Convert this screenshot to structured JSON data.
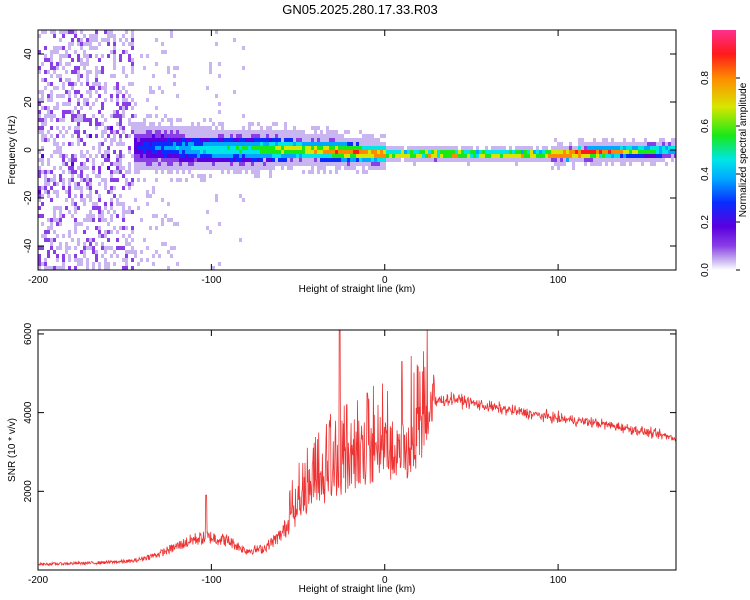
{
  "figure": {
    "title": "GN05.2025.280.17.33.R03"
  },
  "colors": {
    "snr_line": "#ee3333",
    "colormap": [
      "#ffffff",
      "#c9b5f0",
      "#8a3fe6",
      "#5a00e0",
      "#0a2cff",
      "#00a8ff",
      "#00e6e6",
      "#18e818",
      "#d8e600",
      "#ff8a00",
      "#ff1a1a",
      "#ff2f8f"
    ]
  },
  "chart_data": [
    {
      "type": "heatmap",
      "name": "spectrogram",
      "xlabel": "Height of straight line (km)",
      "ylabel": "Frequency (Hz)",
      "xlim": [
        -200,
        168
      ],
      "ylim": [
        -50,
        50
      ],
      "xticks": [
        -200,
        -100,
        0,
        100
      ],
      "yticks": [
        -40,
        -20,
        0,
        20,
        40
      ],
      "colorbar": {
        "label": "Normalized spectral amplitude",
        "range": [
          0,
          1
        ],
        "ticks": [
          "0.0",
          "0.2",
          "0.4",
          "0.6",
          "0.8"
        ]
      },
      "description_of_values": "amplitude mostly near 0 Hz; diffuse noise for heights < -145 km; narrow band from -145 km to 168 km with peak ~1.0 near 110 km",
      "band_center_hz": [
        {
          "x": -145,
          "f": 2
        },
        {
          "x": -100,
          "f": 1
        },
        {
          "x": -50,
          "f": 1
        },
        {
          "x": 0,
          "f": -1
        },
        {
          "x": 50,
          "f": -1
        },
        {
          "x": 100,
          "f": -1
        },
        {
          "x": 168,
          "f": 1
        }
      ],
      "amplitude_profile": [
        {
          "x": -145,
          "a": 0.35
        },
        {
          "x": -120,
          "a": 0.5
        },
        {
          "x": -100,
          "a": 0.6
        },
        {
          "x": -80,
          "a": 0.65
        },
        {
          "x": -60,
          "a": 0.75
        },
        {
          "x": -40,
          "a": 0.8
        },
        {
          "x": -20,
          "a": 0.85
        },
        {
          "x": 0,
          "a": 0.9
        },
        {
          "x": 50,
          "a": 0.9
        },
        {
          "x": 90,
          "a": 0.9
        },
        {
          "x": 110,
          "a": 1.0
        },
        {
          "x": 140,
          "a": 0.75
        },
        {
          "x": 168,
          "a": 0.6
        }
      ]
    },
    {
      "type": "line",
      "name": "snr",
      "xlabel": "Height of straight line (km)",
      "ylabel": "SNR (10 * v/v)",
      "xlim": [
        -200,
        168
      ],
      "ylim": [
        0,
        6100
      ],
      "xticks": [
        -200,
        -100,
        0,
        100
      ],
      "yticks": [
        2000,
        4000,
        6000
      ],
      "envelope": [
        {
          "x": -200,
          "y": 150
        },
        {
          "x": -170,
          "y": 180
        },
        {
          "x": -145,
          "y": 230
        },
        {
          "x": -130,
          "y": 420
        },
        {
          "x": -110,
          "y": 800
        },
        {
          "x": -100,
          "y": 850
        },
        {
          "x": -90,
          "y": 750
        },
        {
          "x": -80,
          "y": 500
        },
        {
          "x": -70,
          "y": 550
        },
        {
          "x": -60,
          "y": 900
        },
        {
          "x": -50,
          "y": 1600
        },
        {
          "x": -40,
          "y": 2100
        },
        {
          "x": -30,
          "y": 2400
        },
        {
          "x": -20,
          "y": 2700
        },
        {
          "x": -10,
          "y": 2900
        },
        {
          "x": 0,
          "y": 3100
        },
        {
          "x": 10,
          "y": 2900
        },
        {
          "x": 20,
          "y": 3500
        },
        {
          "x": 30,
          "y": 4300
        },
        {
          "x": 40,
          "y": 4350
        },
        {
          "x": 60,
          "y": 4150
        },
        {
          "x": 80,
          "y": 4000
        },
        {
          "x": 100,
          "y": 3850
        },
        {
          "x": 120,
          "y": 3750
        },
        {
          "x": 140,
          "y": 3600
        },
        {
          "x": 168,
          "y": 3350
        }
      ],
      "spikes": [
        {
          "x": -103,
          "y": 1900
        },
        {
          "x": -26,
          "y": 6100
        },
        {
          "x": -22,
          "y": 4200
        },
        {
          "x": -10,
          "y": 4500
        },
        {
          "x": 10,
          "y": 5300
        },
        {
          "x": 8,
          "y": 3300
        }
      ]
    }
  ]
}
